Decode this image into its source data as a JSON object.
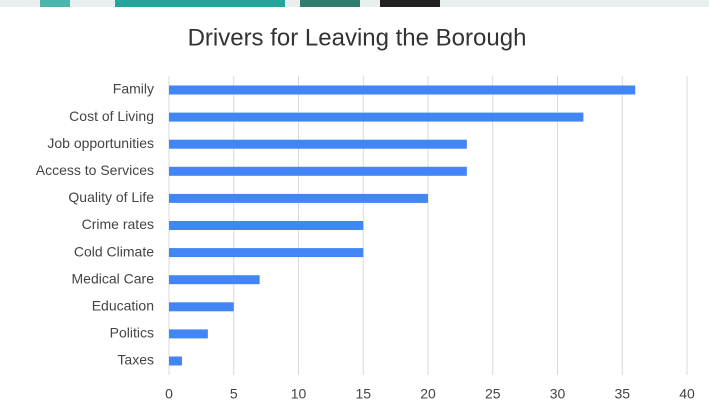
{
  "chart_data": {
    "type": "bar",
    "orientation": "horizontal",
    "title": "Drivers for Leaving the Borough",
    "categories": [
      "Family",
      "Cost of Living",
      "Job opportunities",
      "Access to Services",
      "Quality of Life",
      "Crime rates",
      "Cold Climate",
      "Medical Care",
      "Education",
      "Politics",
      "Taxes"
    ],
    "values": [
      36,
      32,
      23,
      23,
      20,
      15,
      15,
      7,
      5,
      3,
      1
    ],
    "color": "#4285f4",
    "xlim": [
      0,
      40
    ],
    "xticks": [
      0,
      5,
      10,
      15,
      20,
      25,
      30,
      35,
      40
    ],
    "grid": true
  }
}
